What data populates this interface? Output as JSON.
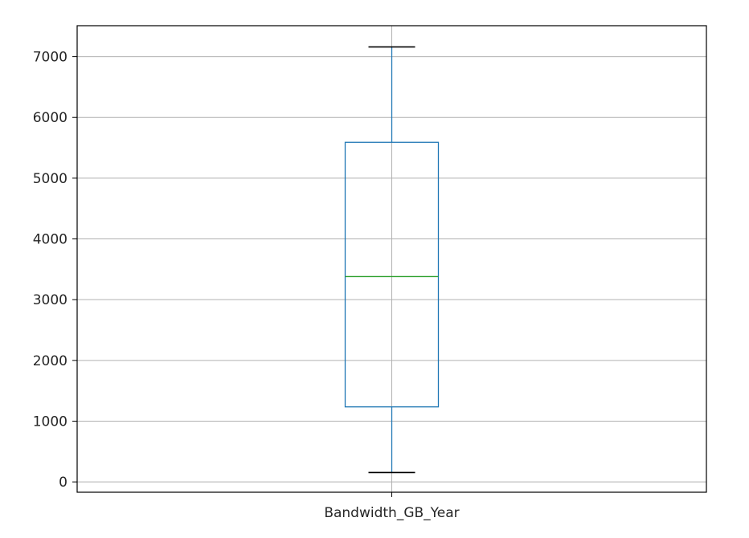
{
  "chart_data": {
    "type": "box",
    "categories": [
      "Bandwidth_GB_Year"
    ],
    "series": [
      {
        "whisker_low": 155,
        "q1": 1235,
        "median": 3380,
        "q3": 5590,
        "whisker_high": 7160
      }
    ],
    "ylim": [
      -170,
      7510
    ],
    "yticks": [
      0,
      1000,
      2000,
      3000,
      4000,
      5000,
      6000,
      7000
    ],
    "ytick_labels": [
      "0",
      "1000",
      "2000",
      "3000",
      "4000",
      "5000",
      "6000",
      "7000"
    ],
    "grid": true,
    "colors": {
      "box": "#1f77b4",
      "median": "#2ca02c",
      "whisker": "#1f77b4",
      "cap": "#000000",
      "grid": "#b0b0b0",
      "axes": "#000000"
    }
  }
}
